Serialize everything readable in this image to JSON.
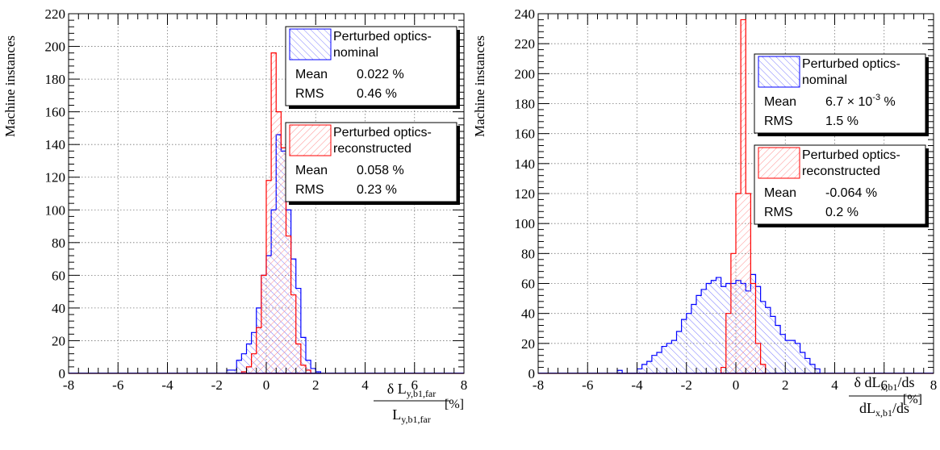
{
  "chart_data": [
    {
      "type": "histogram",
      "ylabel": "Machine instances",
      "xlabel": {
        "numerator": "δ L",
        "numerator_sub": "y,b1,far",
        "denominator": "L",
        "denominator_sub": "y,b1,far",
        "unit": "[%]"
      },
      "xlim": [
        -8,
        8
      ],
      "ylim": [
        0,
        220
      ],
      "x_ticks": [
        "-8",
        "-6",
        "-4",
        "-2",
        "0",
        "2",
        "4",
        "6",
        "8"
      ],
      "y_ticks": [
        "0",
        "20",
        "40",
        "60",
        "80",
        "100",
        "120",
        "140",
        "160",
        "180",
        "200",
        "220"
      ],
      "bin_width": 0.2,
      "grid": true,
      "legend": [
        {
          "series": "nominal",
          "label_line1": "Perturbed optics-",
          "label_line2": "nominal",
          "mean_label": "Mean",
          "mean_value": "0.022 %",
          "rms_label": "RMS",
          "rms_value": "0.46 %"
        },
        {
          "series": "reconstructed",
          "label_line1": "Perturbed optics-",
          "label_line2": "reconstructed",
          "mean_label": "Mean",
          "mean_value": "0.058 %",
          "rms_label": "RMS",
          "rms_value": "0.23 %"
        }
      ],
      "series": [
        {
          "name": "Perturbed optics-nominal",
          "color": "#0000ff",
          "bin_edges_start": -1.6,
          "values": [
            2,
            2,
            8,
            12,
            18,
            25,
            40,
            60,
            72,
            100,
            146,
            136,
            100,
            70,
            52,
            22,
            8,
            3,
            1
          ]
        },
        {
          "name": "Perturbed optics-reconstructed",
          "color": "#ff0000",
          "bin_edges_start": -1.0,
          "values": [
            1,
            4,
            12,
            28,
            60,
            118,
            196,
            160,
            138,
            84,
            48,
            18,
            5,
            2
          ]
        }
      ]
    },
    {
      "type": "histogram",
      "ylabel": "Machine instances",
      "xlabel": {
        "numerator": "δ dL",
        "numerator_sub": "x,b1",
        "numerator_suffix": "/ds",
        "denominator": "dL",
        "denominator_sub": "x,b1",
        "denominator_suffix": "/ds",
        "unit": "[%]"
      },
      "xlim": [
        -8,
        8
      ],
      "ylim": [
        0,
        240
      ],
      "x_ticks": [
        "-8",
        "-6",
        "-4",
        "-2",
        "0",
        "2",
        "4",
        "6",
        "8"
      ],
      "y_ticks": [
        "0",
        "20",
        "40",
        "60",
        "80",
        "100",
        "120",
        "140",
        "160",
        "180",
        "200",
        "220",
        "240"
      ],
      "bin_width": 0.2,
      "grid": true,
      "legend": [
        {
          "series": "nominal",
          "label_line1": "Perturbed optics-",
          "label_line2": "nominal",
          "mean_label": "Mean",
          "mean_value": "6.7 × 10",
          "mean_exp": "-3",
          "mean_unit": " %",
          "rms_label": "RMS",
          "rms_value": "1.5 %"
        },
        {
          "series": "reconstructed",
          "label_line1": "Perturbed optics-",
          "label_line2": "reconstructed",
          "mean_label": "Mean",
          "mean_value": "-0.064 %",
          "rms_label": "RMS",
          "rms_value": "0.2 %"
        }
      ],
      "series": [
        {
          "name": "Perturbed optics-nominal",
          "color": "#0000ff",
          "bin_edges_start": -4.8,
          "values": [
            2,
            0,
            0,
            0,
            3,
            6,
            8,
            12,
            14,
            18,
            20,
            22,
            28,
            36,
            40,
            46,
            52,
            56,
            60,
            62,
            64,
            58,
            60,
            60,
            62,
            60,
            55,
            66,
            58,
            48,
            44,
            38,
            32,
            26,
            22,
            22,
            20,
            14,
            10,
            6,
            3
          ]
        },
        {
          "name": "Perturbed optics-reconstructed",
          "color": "#ff0000",
          "bin_edges_start": -0.6,
          "values": [
            4,
            40,
            80,
            120,
            236,
            120,
            60,
            20,
            6
          ]
        }
      ]
    }
  ]
}
